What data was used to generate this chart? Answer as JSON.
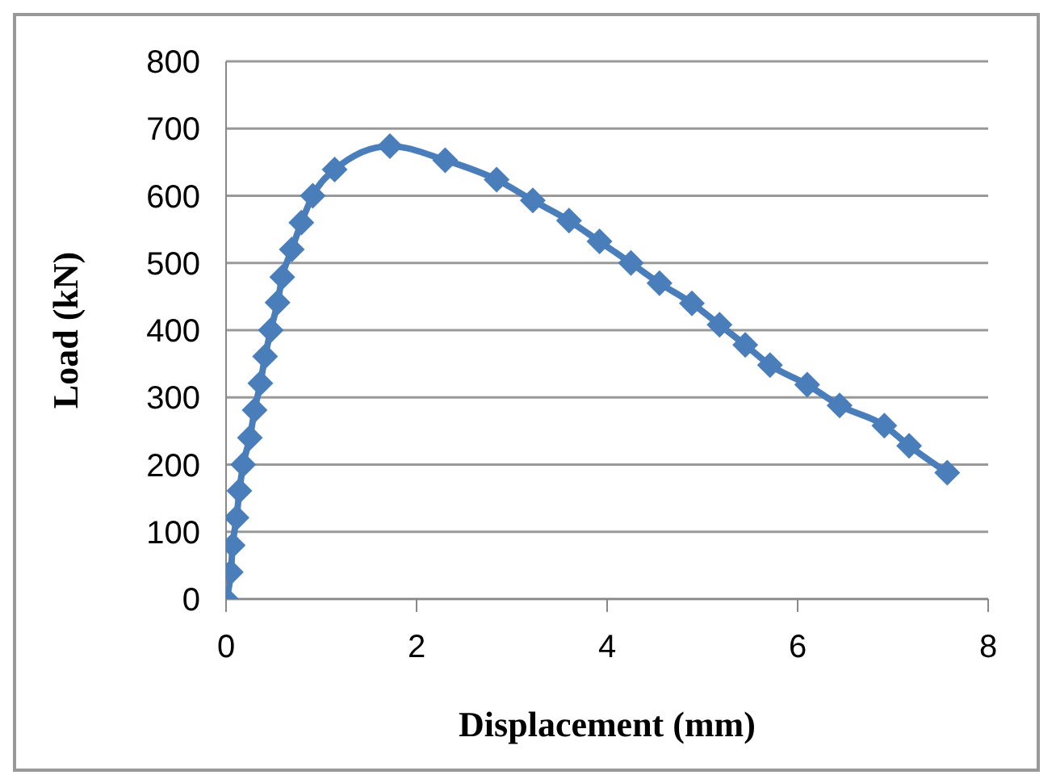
{
  "chart_data": {
    "type": "line",
    "xlabel": "Displacement (mm)",
    "ylabel": "Load (kN)",
    "x": [
      0,
      0.05,
      0.07,
      0.11,
      0.14,
      0.18,
      0.25,
      0.3,
      0.36,
      0.41,
      0.47,
      0.54,
      0.59,
      0.69,
      0.79,
      0.91,
      1.14,
      1.72,
      2.3,
      2.84,
      3.22,
      3.6,
      3.92,
      4.25,
      4.55,
      4.89,
      5.18,
      5.45,
      5.71,
      6.1,
      6.44,
      6.91,
      7.17,
      7.57
    ],
    "series": [
      {
        "color": "#4a7ebb",
        "values": [
          0,
          40,
          80,
          121,
          161,
          200,
          240,
          281,
          321,
          361,
          400,
          441,
          479,
          520,
          560,
          600,
          639,
          674,
          653,
          624,
          593,
          563,
          532,
          500,
          470,
          440,
          408,
          378,
          348,
          319,
          288,
          258,
          228,
          188
        ]
      }
    ],
    "xlim": [
      0,
      8
    ],
    "xticks": [
      0,
      2,
      4,
      6,
      8
    ],
    "ylim": [
      0,
      800
    ],
    "yticks": [
      0,
      100,
      200,
      300,
      400,
      500,
      600,
      700,
      800
    ],
    "grid": "y",
    "legend": false,
    "marker": "diamond",
    "line_style": "solid"
  }
}
